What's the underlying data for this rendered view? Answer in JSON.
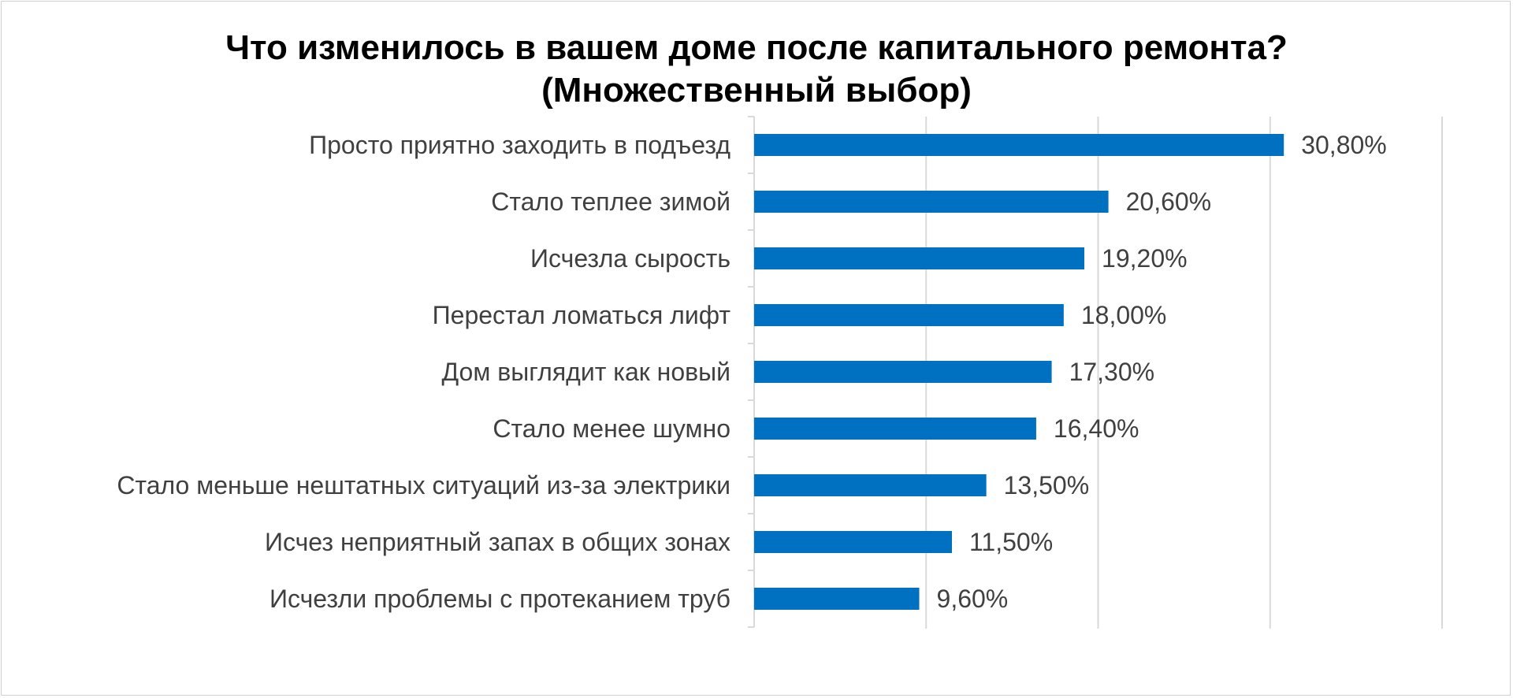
{
  "chart_data": {
    "type": "bar",
    "orientation": "horizontal",
    "title_line1": "Что изменилось в вашем доме после капитального ремонта?",
    "title_line2": "(Множественный выбор)",
    "categories": [
      "Просто приятно заходить в подъезд",
      "Стало теплее зимой",
      "Исчезла сырость",
      "Перестал ломаться лифт",
      "Дом выглядит как новый",
      "Стало менее шумно",
      "Стало меньше нештатных ситуаций из-за электрики",
      "Исчез неприятный запах в общих зонах",
      "Исчезли проблемы с протеканием труб"
    ],
    "values": [
      30.8,
      20.6,
      19.2,
      18.0,
      17.3,
      16.4,
      13.5,
      11.5,
      9.6
    ],
    "value_labels": [
      "30,80%",
      "20,60%",
      "19,20%",
      "18,00%",
      "17,30%",
      "16,40%",
      "13,50%",
      "11,50%",
      "9,60%"
    ],
    "xlim": [
      0,
      40
    ],
    "grid": true,
    "bar_color": "#0070C0",
    "gridline_color": "#d9d9d9",
    "text_color": "#404040"
  }
}
